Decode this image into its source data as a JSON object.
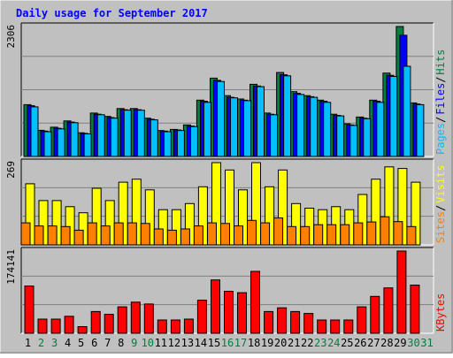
{
  "title": "Daily usage for September 2017",
  "colors": {
    "background": "#C0C0C0",
    "title": "#0000FF",
    "hits": "#008040",
    "files": "#0000FF",
    "pages": "#00C0FF",
    "visits": "#FFFF00",
    "sites": "#FF8000",
    "kbytes": "#FF0000",
    "weekend_label": "#008040",
    "weekday_label": "#000000"
  },
  "chart_data": {
    "type": "bar",
    "days": [
      "1",
      "2",
      "3",
      "4",
      "5",
      "6",
      "7",
      "8",
      "9",
      "10",
      "11",
      "12",
      "13",
      "14",
      "15",
      "16",
      "17",
      "18",
      "19",
      "20",
      "21",
      "22",
      "23",
      "24",
      "25",
      "26",
      "27",
      "28",
      "29",
      "30",
      "31"
    ],
    "weekend_days": [
      "2",
      "3",
      "9",
      "10",
      "16",
      "17",
      "23",
      "24",
      "30",
      "31"
    ],
    "panels": [
      {
        "id": "hits",
        "max_label": "2306",
        "ylim": [
          0,
          2306
        ],
        "legend": [
          {
            "text": "Pages",
            "color_key": "pages"
          },
          {
            "text": "Files",
            "color_key": "files"
          },
          {
            "text": "Hits",
            "color_key": "hits"
          }
        ],
        "series": [
          {
            "name": "Hits",
            "color_key": "hits",
            "values": [
              920,
              465,
              520,
              630,
              420,
              770,
              710,
              850,
              850,
              680,
              460,
              480,
              560,
              1000,
              1390,
              1080,
              1020,
              1280,
              770,
              1490,
              1150,
              1080,
              1000,
              750,
              580,
              700,
              1000,
              1480,
              2306,
              950,
              0
            ]
          },
          {
            "name": "Files",
            "color_key": "files",
            "values": [
              900,
              450,
              500,
              610,
              410,
              750,
              690,
              830,
              830,
              660,
              450,
              470,
              540,
              980,
              1350,
              1050,
              1000,
              1250,
              750,
              1450,
              1120,
              1060,
              980,
              730,
              560,
              680,
              980,
              1440,
              2150,
              930,
              0
            ]
          },
          {
            "name": "Pages",
            "color_key": "pages",
            "values": [
              880,
              440,
              490,
              600,
              400,
              740,
              680,
              820,
              820,
              650,
              440,
              460,
              530,
              960,
              1330,
              1040,
              990,
              1240,
              740,
              1430,
              1100,
              1050,
              960,
              720,
              550,
              670,
              960,
              1420,
              1600,
              920,
              0
            ]
          }
        ]
      },
      {
        "id": "visits",
        "max_label": "269",
        "ylim": [
          0,
          269
        ],
        "legend": [
          {
            "text": "Sites",
            "color_key": "sites"
          },
          {
            "text": "Visits",
            "color_key": "visits"
          }
        ],
        "series": [
          {
            "name": "Visits",
            "color_key": "visits",
            "values": [
              200,
              145,
              145,
              125,
              105,
              185,
              145,
              205,
              215,
              180,
              115,
              115,
              135,
              190,
              269,
              245,
              180,
              269,
              190,
              245,
              135,
              120,
              115,
              125,
              115,
              165,
              215,
              255,
              250,
              205,
              0
            ]
          },
          {
            "name": "Sites",
            "color_key": "sites",
            "values": [
              72,
              62,
              62,
              60,
              48,
              72,
              62,
              72,
              72,
              70,
              52,
              48,
              52,
              62,
              72,
              70,
              62,
              80,
              72,
              88,
              60,
              60,
              66,
              66,
              66,
              72,
              75,
              92,
              76,
              60,
              0
            ]
          }
        ]
      },
      {
        "id": "kbytes",
        "max_label": "174141",
        "ylim": [
          0,
          174141
        ],
        "legend": [
          {
            "text": "KBytes",
            "color_key": "kbytes"
          }
        ],
        "series": [
          {
            "name": "KBytes",
            "color_key": "kbytes",
            "values": [
              100000,
              30000,
              30000,
              36000,
              14000,
              46000,
              40000,
              56000,
              66000,
              62000,
              28000,
              28000,
              30000,
              70000,
              113000,
              89000,
              86000,
              131000,
              46000,
              54000,
              46000,
              42000,
              28000,
              28000,
              28000,
              56000,
              78000,
              96000,
              174141,
              102000,
              0
            ]
          }
        ]
      }
    ]
  }
}
